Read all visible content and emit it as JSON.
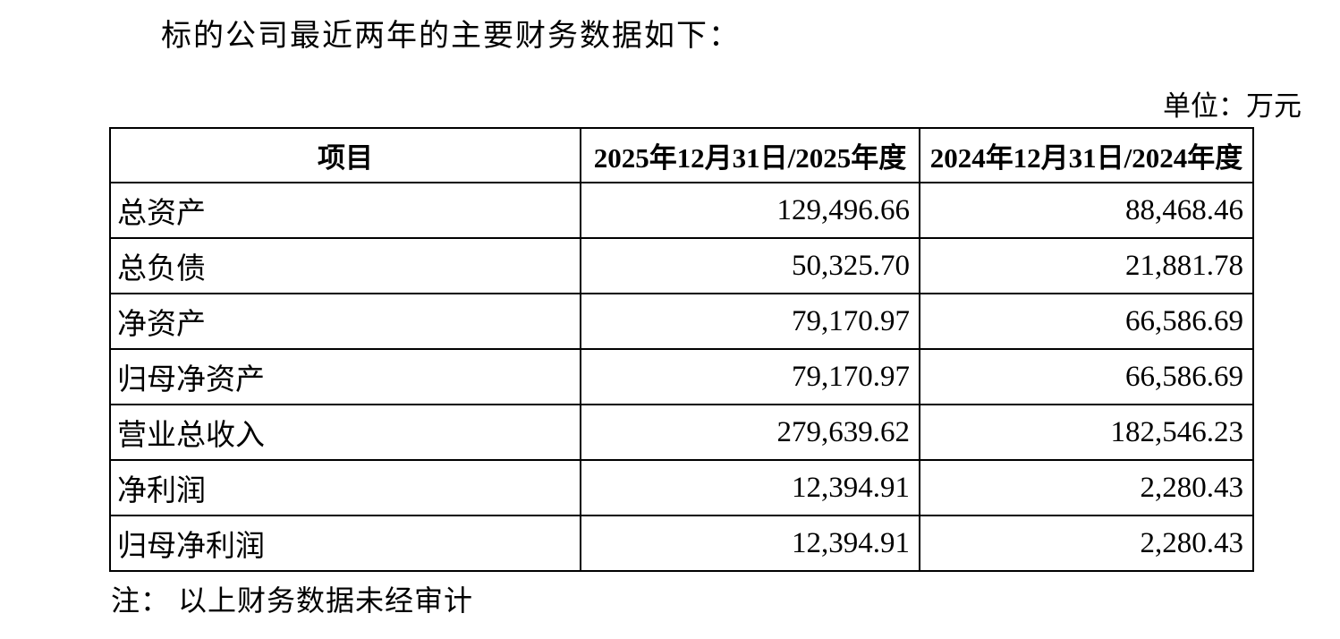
{
  "document": {
    "intro": "标的公司最近两年的主要财务数据如下：",
    "unit_label": "单位：万元",
    "note": "注： 以上财务数据未经审计"
  },
  "table": {
    "headers": [
      "项目",
      "2025年12月31日/2025年度",
      "2024年12月31日/2024年度"
    ],
    "rows": [
      {
        "item": "总资产",
        "v2025": "129,496.66",
        "v2024": "88,468.46"
      },
      {
        "item": "总负债",
        "v2025": "50,325.70",
        "v2024": "21,881.78"
      },
      {
        "item": "净资产",
        "v2025": "79,170.97",
        "v2024": "66,586.69"
      },
      {
        "item": "归母净资产",
        "v2025": "79,170.97",
        "v2024": "66,586.69"
      },
      {
        "item": "营业总收入",
        "v2025": "279,639.62",
        "v2024": "182,546.23"
      },
      {
        "item": "净利润",
        "v2025": "12,394.91",
        "v2024": "2,280.43"
      },
      {
        "item": "归母净利润",
        "v2025": "12,394.91",
        "v2024": "2,280.43"
      }
    ]
  }
}
